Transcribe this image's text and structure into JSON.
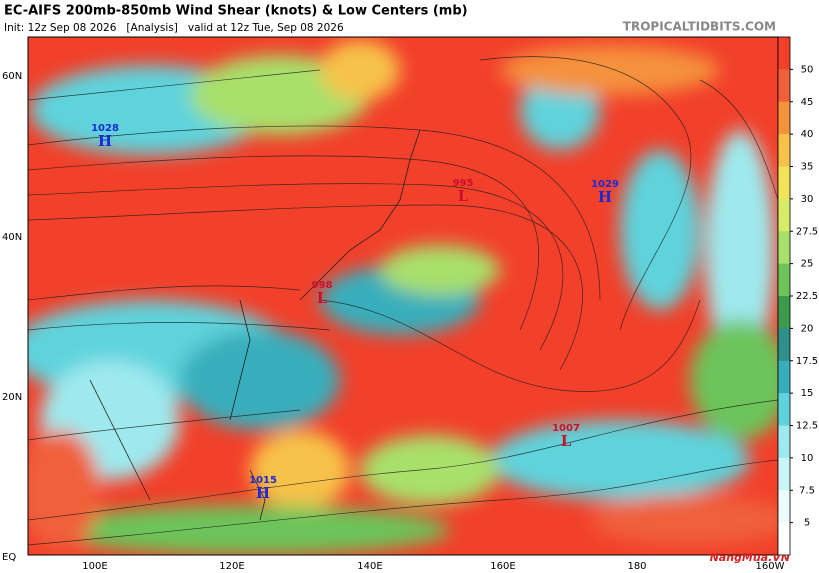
{
  "header": {
    "title": "EC-AIFS 200mb-850mb Wind Shear (knots) & Low Centers (mb)",
    "subtitle": "Init: 12z Sep 08 2026   [Analysis]   valid at 12z Tue, Sep 08 2026",
    "site": "TROPICALTIDBITS.COM"
  },
  "map": {
    "lat_labels": [
      "60N",
      "40N",
      "20N",
      "EQ"
    ],
    "lon_labels": [
      "100E",
      "120E",
      "140E",
      "160E",
      "180",
      "160W"
    ],
    "centers": [
      {
        "pressure": 1028,
        "symbol": "H"
      },
      {
        "pressure": 995,
        "symbol": "L"
      },
      {
        "pressure": 1029,
        "symbol": "H"
      },
      {
        "pressure": 998,
        "symbol": "L"
      },
      {
        "pressure": 1007,
        "symbol": "L"
      },
      {
        "pressure": 1015,
        "symbol": "H"
      }
    ]
  },
  "colorbar": {
    "ticks": [
      50,
      45,
      40,
      35,
      30,
      27.5,
      25,
      22.5,
      20,
      17.5,
      15,
      12.5,
      10,
      7.5,
      5
    ],
    "colors": [
      "#f2402a",
      "#f0603a",
      "#f5923c",
      "#f7c24a",
      "#f2e35a",
      "#d9ec68",
      "#a8e06a",
      "#6cc45a",
      "#3c9a4e",
      "#2f8f8a",
      "#38aebc",
      "#5fd3dc",
      "#9ee9ee",
      "#c9f5f6",
      "#eafcfc",
      "#ffffff"
    ]
  },
  "watermark": "NangMua.VN"
}
